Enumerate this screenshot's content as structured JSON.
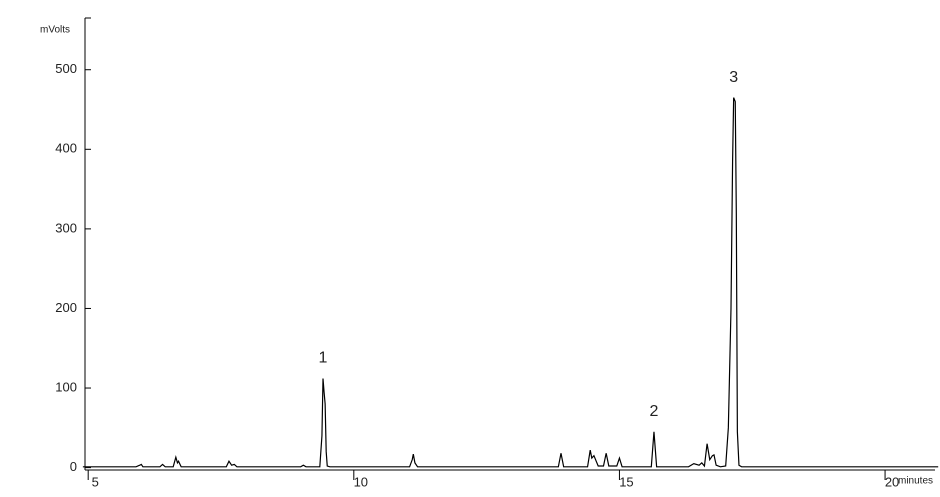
{
  "chart_data": {
    "type": "line",
    "x_label": "minutes",
    "y_label": "mVolts",
    "x": [
      4.9,
      5.9,
      5.97,
      6.0,
      6.03,
      6.35,
      6.4,
      6.45,
      6.6,
      6.65,
      6.68,
      6.7,
      6.75,
      7.6,
      7.65,
      7.7,
      7.75,
      7.8,
      9.0,
      9.05,
      9.1,
      9.36,
      9.4,
      9.42,
      9.44,
      9.46,
      9.48,
      9.5,
      9.55,
      11.05,
      11.1,
      11.12,
      11.15,
      11.2,
      13.85,
      13.9,
      13.95,
      14.4,
      14.45,
      14.48,
      14.52,
      14.6,
      14.7,
      14.75,
      14.8,
      14.95,
      15.0,
      15.05,
      15.6,
      15.65,
      15.7,
      16.3,
      16.4,
      16.5,
      16.55,
      16.6,
      16.65,
      16.7,
      16.75,
      16.78,
      16.82,
      16.9,
      17.0,
      17.05,
      17.1,
      17.13,
      17.15,
      17.18,
      17.2,
      17.22,
      17.25,
      17.3,
      18.0,
      19.0,
      20.0,
      21.0
    ],
    "series": [
      {
        "color": "#000000",
        "values": [
          1,
          1,
          3,
          4,
          1,
          1,
          4,
          1,
          1,
          13,
          6,
          8,
          1,
          1,
          8,
          3,
          4,
          1,
          1,
          3,
          1,
          1,
          40,
          112,
          95,
          80,
          20,
          2,
          1,
          1,
          10,
          17,
          6,
          1,
          1,
          18,
          1,
          1,
          22,
          12,
          15,
          2,
          2,
          18,
          2,
          2,
          12,
          1,
          1,
          45,
          1,
          1,
          5,
          3,
          6,
          2,
          30,
          10,
          15,
          16,
          3,
          1,
          2,
          50,
          200,
          385,
          465,
          460,
          320,
          45,
          3,
          1,
          1,
          1,
          1,
          1
        ]
      }
    ],
    "annotations": [
      {
        "text": "1",
        "x": 9.42,
        "y": 112
      },
      {
        "text": "2",
        "x": 15.65,
        "y": 45
      },
      {
        "text": "3",
        "x": 17.15,
        "y": 465
      }
    ],
    "xlim": [
      4.94,
      20.94
    ],
    "xticks": [
      5,
      10,
      15,
      20
    ],
    "ylim": [
      -3,
      565
    ],
    "yticks": [
      0,
      100,
      200,
      300,
      400,
      500
    ]
  }
}
